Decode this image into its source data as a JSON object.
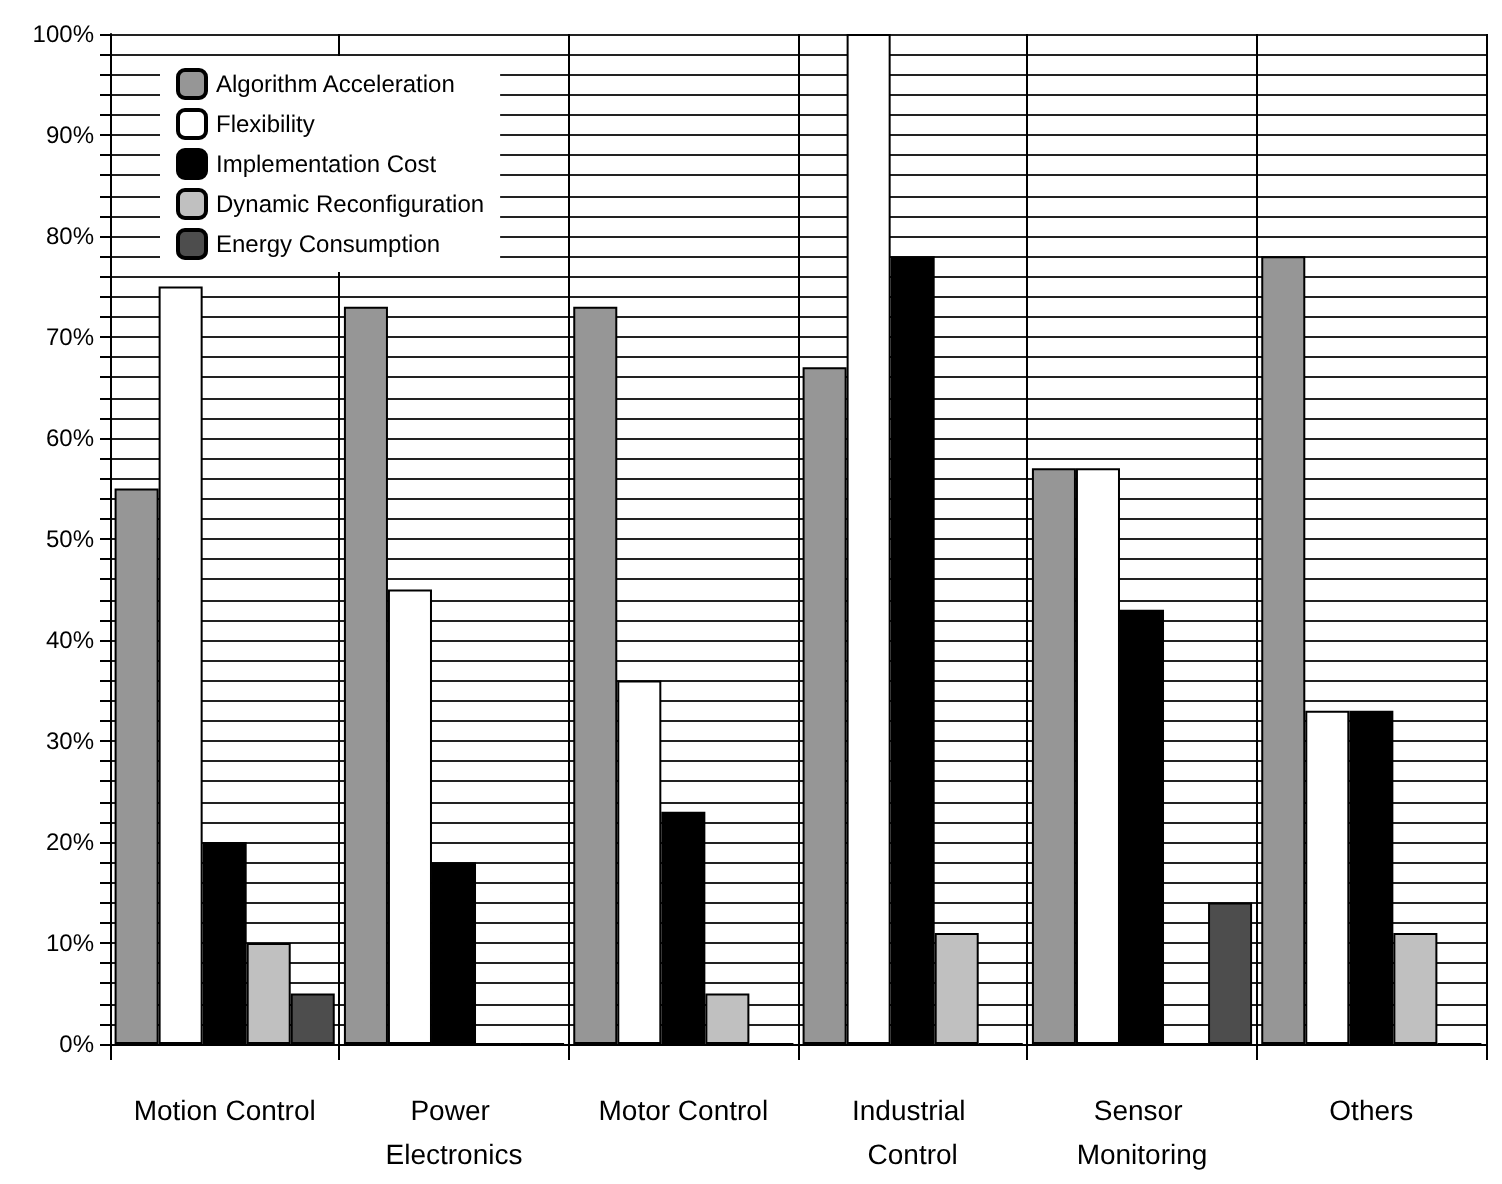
{
  "chart_data": {
    "type": "bar",
    "categories": [
      "Motion Control",
      "Power Electronics",
      "Motor Control",
      "Industrial Control",
      "Sensor Monitoring",
      "Others"
    ],
    "series": [
      {
        "name": "Algorithm Acceleration",
        "color": "#969696",
        "values": [
          55,
          73,
          73,
          67,
          57,
          78
        ]
      },
      {
        "name": "Flexibility",
        "color": "#ffffff",
        "values": [
          75,
          45,
          36,
          100,
          57,
          33
        ]
      },
      {
        "name": "Implementation Cost",
        "color": "#000000",
        "values": [
          20,
          18,
          23,
          78,
          43,
          33
        ]
      },
      {
        "name": "Dynamic Reconfiguration",
        "color": "#c0c0c0",
        "values": [
          10,
          0,
          5,
          11,
          0,
          11
        ]
      },
      {
        "name": "Energy Consumption",
        "color": "#4d4d4d",
        "values": [
          5,
          0,
          0,
          0,
          14,
          0
        ]
      }
    ],
    "ylim": [
      0,
      100
    ],
    "yticks": [
      {
        "value": 0,
        "label": "0%"
      },
      {
        "value": 2,
        "label": null
      },
      {
        "value": 4,
        "label": null
      },
      {
        "value": 6,
        "label": null
      },
      {
        "value": 8,
        "label": null
      },
      {
        "value": 10,
        "label": "10%"
      },
      {
        "value": 12,
        "label": null
      },
      {
        "value": 14,
        "label": null
      },
      {
        "value": 16,
        "label": null
      },
      {
        "value": 18,
        "label": null
      },
      {
        "value": 20,
        "label": "20%"
      },
      {
        "value": 22,
        "label": null
      },
      {
        "value": 24,
        "label": null
      },
      {
        "value": 26,
        "label": null
      },
      {
        "value": 28,
        "label": null
      },
      {
        "value": 30,
        "label": "30%"
      },
      {
        "value": 32,
        "label": null
      },
      {
        "value": 34,
        "label": null
      },
      {
        "value": 36,
        "label": null
      },
      {
        "value": 38,
        "label": null
      },
      {
        "value": 40,
        "label": "40%"
      },
      {
        "value": 42,
        "label": null
      },
      {
        "value": 44,
        "label": null
      },
      {
        "value": 46,
        "label": null
      },
      {
        "value": 48,
        "label": null
      },
      {
        "value": 50,
        "label": "50%"
      },
      {
        "value": 52,
        "label": null
      },
      {
        "value": 54,
        "label": null
      },
      {
        "value": 56,
        "label": null
      },
      {
        "value": 58,
        "label": null
      },
      {
        "value": 60,
        "label": "60%"
      },
      {
        "value": 62,
        "label": null
      },
      {
        "value": 64,
        "label": null
      },
      {
        "value": 66,
        "label": null
      },
      {
        "value": 68,
        "label": null
      },
      {
        "value": 70,
        "label": "70%"
      },
      {
        "value": 72,
        "label": null
      },
      {
        "value": 74,
        "label": null
      },
      {
        "value": 76,
        "label": null
      },
      {
        "value": 78,
        "label": null
      },
      {
        "value": 80,
        "label": "80%"
      },
      {
        "value": 82,
        "label": null
      },
      {
        "value": 84,
        "label": null
      },
      {
        "value": 86,
        "label": null
      },
      {
        "value": 88,
        "label": null
      },
      {
        "value": 90,
        "label": "90%"
      },
      {
        "value": 92,
        "label": null
      },
      {
        "value": 94,
        "label": null
      },
      {
        "value": 96,
        "label": null
      },
      {
        "value": 98,
        "label": null
      },
      {
        "value": 100,
        "label": "100%"
      }
    ],
    "grid": true,
    "legend": "top left"
  }
}
